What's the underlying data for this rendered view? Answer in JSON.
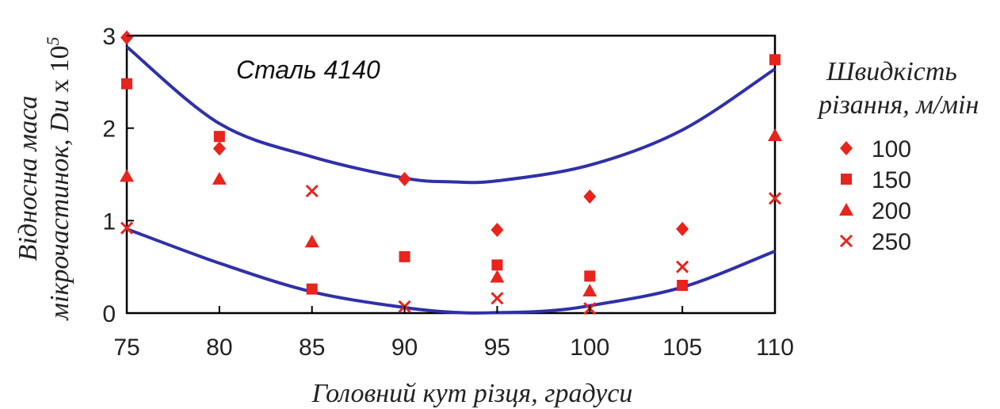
{
  "chart_data": {
    "type": "scatter",
    "annotation": "Сталь 4140",
    "xlabel": "Головний кут різця, градуси",
    "ylabel_line1": "Відносна маса",
    "ylabel_line2_prefix": "мікрочастинок, ",
    "ylabel_du": "Du",
    "ylabel_x": " x 10",
    "ylabel_exp": "5",
    "xlim": [
      75,
      110
    ],
    "ylim": [
      0,
      3
    ],
    "xticks": [
      "75",
      "80",
      "85",
      "90",
      "95",
      "100",
      "105",
      "110"
    ],
    "yticks": [
      "0",
      "1",
      "2",
      "3"
    ],
    "grid": false,
    "legend": {
      "title_line1": "Швидкість",
      "title_line2": "різання, м/мін",
      "placement": "right"
    },
    "marker_color": "#e8241c",
    "curve_color": "#3030a8",
    "series": [
      {
        "name": "100",
        "marker": "diamond",
        "points": [
          [
            75,
            2.98
          ],
          [
            80,
            1.78
          ],
          [
            90,
            1.45
          ],
          [
            95,
            0.9
          ],
          [
            100,
            1.26
          ],
          [
            105,
            0.91
          ]
        ]
      },
      {
        "name": "150",
        "marker": "square",
        "points": [
          [
            75,
            2.48
          ],
          [
            80,
            1.91
          ],
          [
            85,
            0.26
          ],
          [
            90,
            0.61
          ],
          [
            95,
            0.52
          ],
          [
            100,
            0.4
          ],
          [
            105,
            0.3
          ],
          [
            110,
            2.74
          ]
        ]
      },
      {
        "name": "200",
        "marker": "triangle",
        "points": [
          [
            75,
            1.48
          ],
          [
            80,
            1.45
          ],
          [
            85,
            0.77
          ],
          [
            95,
            0.39
          ],
          [
            100,
            0.24
          ],
          [
            110,
            1.92
          ]
        ]
      },
      {
        "name": "250",
        "marker": "cross",
        "points": [
          [
            75,
            0.92
          ],
          [
            85,
            1.32
          ],
          [
            90,
            0.07
          ],
          [
            95,
            0.16
          ],
          [
            100,
            0.05
          ],
          [
            105,
            0.5
          ],
          [
            110,
            1.24
          ]
        ]
      }
    ],
    "trend_curves": [
      {
        "points": [
          [
            75,
            2.88
          ],
          [
            80,
            2.05
          ],
          [
            85,
            1.69
          ],
          [
            90,
            1.46
          ],
          [
            92.5,
            1.42
          ],
          [
            95,
            1.43
          ],
          [
            100,
            1.6
          ],
          [
            105,
            1.98
          ],
          [
            110,
            2.64
          ]
        ]
      },
      {
        "points": [
          [
            75,
            0.91
          ],
          [
            80,
            0.54
          ],
          [
            85,
            0.23
          ],
          [
            90,
            0.06
          ],
          [
            93,
            0.005
          ],
          [
            95,
            0.005
          ],
          [
            97.5,
            0.02
          ],
          [
            100,
            0.08
          ],
          [
            105,
            0.28
          ],
          [
            110,
            0.67
          ]
        ]
      }
    ]
  }
}
